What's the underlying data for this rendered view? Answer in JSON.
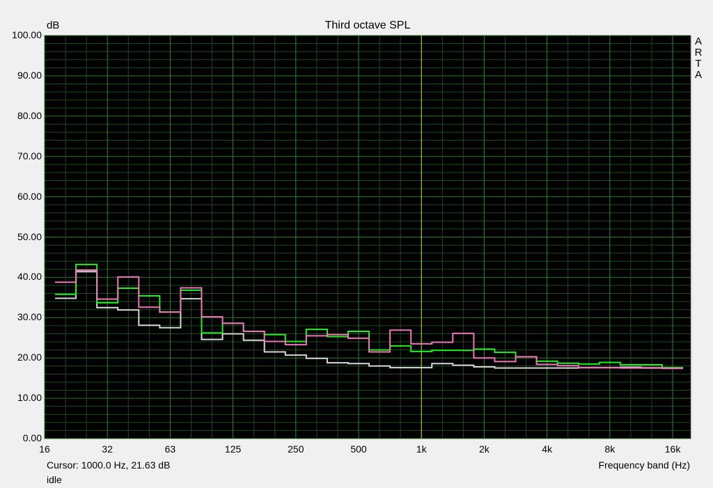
{
  "chart_data": {
    "type": "line",
    "title": "Third octave SPL",
    "ylabel": "dB",
    "xlabel": "Frequency band (Hz)",
    "xscale": "log",
    "xlim": [
      16,
      20000
    ],
    "ylim": [
      0,
      100
    ],
    "grid": true,
    "yticks": [
      "0.00",
      "10.00",
      "20.00",
      "30.00",
      "40.00",
      "50.00",
      "60.00",
      "70.00",
      "80.00",
      "90.00",
      "100.00"
    ],
    "xticks": [
      {
        "f": 16,
        "label": "16"
      },
      {
        "f": 32,
        "label": "32"
      },
      {
        "f": 63,
        "label": "63"
      },
      {
        "f": 125,
        "label": "125"
      },
      {
        "f": 250,
        "label": "250"
      },
      {
        "f": 500,
        "label": "500"
      },
      {
        "f": 1000,
        "label": "1k"
      },
      {
        "f": 2000,
        "label": "2k"
      },
      {
        "f": 4000,
        "label": "4k"
      },
      {
        "f": 8000,
        "label": "8k"
      },
      {
        "f": 16000,
        "label": "16k"
      }
    ],
    "bands": [
      20,
      25,
      31.5,
      40,
      50,
      63,
      80,
      100,
      125,
      160,
      200,
      250,
      315,
      400,
      500,
      630,
      800,
      1000,
      1250,
      1600,
      2000,
      2500,
      3150,
      4000,
      5000,
      6300,
      8000,
      10000,
      12500,
      16000
    ],
    "series": [
      {
        "color": "#d8d8d8",
        "values": [
          34.8,
          41.4,
          32.5,
          31.9,
          28.1,
          27.5,
          34.7,
          24.6,
          26.0,
          24.4,
          21.5,
          20.7,
          19.9,
          18.8,
          18.6,
          18.0,
          17.6,
          17.6,
          18.6,
          18.2,
          17.8,
          17.5,
          17.5,
          17.5,
          17.5,
          17.6,
          17.6,
          17.7,
          17.5,
          17.5
        ]
      },
      {
        "color": "#22ee22",
        "values": [
          35.8,
          43.2,
          33.7,
          37.3,
          35.4,
          31.4,
          36.8,
          26.2,
          28.6,
          26.6,
          25.8,
          24.1,
          27.1,
          25.3,
          26.6,
          22.0,
          23.0,
          21.6,
          21.9,
          21.9,
          22.2,
          21.4,
          20.3,
          19.2,
          18.7,
          18.5,
          18.9,
          18.3,
          18.3,
          17.6
        ]
      },
      {
        "color": "#ee77bb",
        "values": [
          38.8,
          41.8,
          34.6,
          40.1,
          32.6,
          31.4,
          37.4,
          30.2,
          28.6,
          26.6,
          24.1,
          23.3,
          25.5,
          25.8,
          24.9,
          21.5,
          26.9,
          23.5,
          23.9,
          26.1,
          20.0,
          19.1,
          20.3,
          18.4,
          18.1,
          17.6,
          17.6,
          17.5,
          17.6,
          17.4
        ]
      }
    ],
    "cursor": {
      "f": 1000,
      "color": "#cccc44"
    },
    "watermark": "ARTA"
  },
  "status": {
    "cursor": "Cursor:  1000.0 Hz, 21.63 dB",
    "state": "idle"
  }
}
